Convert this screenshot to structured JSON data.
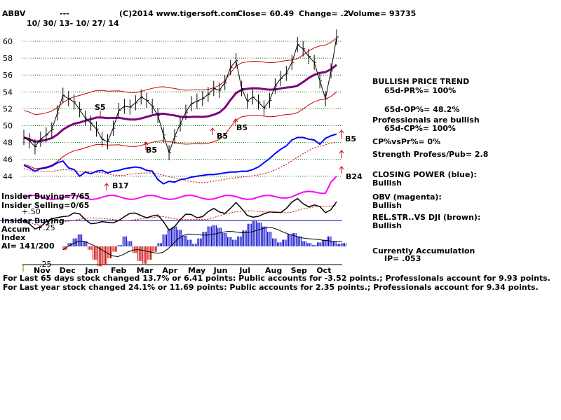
{
  "header": {
    "ticker": "ABBV",
    "dashes": "---",
    "copyright": "(C)2014 www.tigersoft.com",
    "close": "Close=  60.49",
    "change": "Change= .2",
    "volume": "Volume= 93735",
    "date_range": "10/ 30/ 13-  10/ 27/ 14"
  },
  "y_ticks": [
    "60",
    "58",
    "56",
    "54",
    "52",
    "50",
    "48",
    "46",
    "44"
  ],
  "months": [
    "Nov",
    "Dec",
    "Jan",
    "Feb",
    "Mar",
    "Apr",
    "May",
    "Jun",
    "Jul",
    "Aug",
    "Sep",
    "Oct"
  ],
  "signals": {
    "s5": "S5",
    "b17": "B17",
    "b5_feb": "B5",
    "b5_jun": "B5",
    "b5_jul": "B5",
    "b5_oct": "B5",
    "b24": "B24"
  },
  "left_labels": {
    "insider_buying": "Insider Buying=7/65",
    "insider_selling": "Insider Selling=0/65",
    "plus50": "+.50",
    "insider_buying2": "Insider Buying",
    "accum": "Accum",
    "plus25": "+.25",
    "index": "Index",
    "ai": "AI= 141/200",
    "minus25": "-.25"
  },
  "right_panel": {
    "trend_title": "BULLISH PRICE TREND",
    "pr": "65d-PR%= 100%",
    "op": "65d-OP%= 48.2%",
    "pros": "Professionals are bullish",
    "cp": "65d-CP%= 100%",
    "cpvspr": "CP%vsPr%=  0%",
    "strength": "Strength Profess/Pub= 2.8",
    "closing_power": "CLOSING POWER (blue):",
    "closing_power_state": "Bullish",
    "obv": "OBV (magenta):",
    "obv_state": "Bullish",
    "relstr": "REL.STR..VS DJI (brown):",
    "relstr_state": "Bullish",
    "accum": "Currently Accumulation",
    "ip": "IP=  .053"
  },
  "footer": {
    "line1": "For Last 65 days stock changed  13.7% or  6.41 points:  Public accounts for -3.52 points.;  Professionals account for  9.93 points.",
    "line2": "For Last year stock changed  24.1% or  11.69 points:  Public accounts for  2.35 points.;  Professionals account for  9.34 points."
  },
  "colors": {
    "price": "#000000",
    "bands": "#cc0000",
    "ma": "#800080",
    "closing_power": "#0000ff",
    "obv": "#ff00ff",
    "relstr": "#000000",
    "accum_pos": "#0000cc",
    "accum_neg": "#cc0000",
    "grid": "#008000",
    "insider_line": "#0000aa"
  },
  "chart_data": {
    "type": "line",
    "title": "ABBV",
    "ylim": [
      44,
      61
    ],
    "months": [
      "Nov",
      "Dec",
      "Jan",
      "Feb",
      "Mar",
      "Apr",
      "May",
      "Jun",
      "Jul",
      "Aug",
      "Sep",
      "Oct"
    ],
    "price": [
      48.6,
      48.2,
      47.5,
      48.4,
      48.9,
      49.5,
      51.5,
      53.6,
      53.2,
      52.8,
      51.9,
      50.9,
      50.3,
      49.6,
      48.4,
      48.1,
      49.7,
      51.8,
      52.3,
      52.2,
      52.7,
      53.4,
      53.0,
      52.3,
      51.2,
      48.9,
      46.8,
      48.7,
      50.2,
      51.6,
      52.6,
      52.9,
      53.2,
      53.7,
      54.4,
      54.2,
      55.1,
      56.9,
      57.7,
      54.4,
      52.9,
      53.4,
      52.8,
      52.1,
      53.0,
      54.7,
      55.6,
      56.2,
      57.5,
      59.6,
      59.1,
      58.2,
      57.5,
      55.3,
      53.2,
      56.5,
      60.5
    ],
    "closing_power": [
      45.3,
      45.0,
      44.6,
      44.9,
      45.0,
      45.2,
      45.6,
      45.8,
      45.0,
      44.8,
      44.0,
      44.5,
      44.3,
      44.6,
      44.7,
      44.4,
      44.6,
      44.7,
      44.9,
      45.0,
      45.1,
      45.0,
      44.7,
      44.6,
      43.6,
      43.1,
      43.4,
      43.3,
      43.6,
      43.7,
      43.9,
      44.0,
      44.1,
      44.2,
      44.2,
      44.3,
      44.4,
      44.5,
      44.5,
      44.6,
      44.6,
      44.8,
      45.1,
      45.6,
      46.1,
      46.7,
      47.2,
      47.6,
      48.3,
      48.6,
      48.6,
      48.4,
      48.3,
      47.8,
      48.5,
      48.8,
      49.0
    ],
    "obv_trend": "up",
    "signals": [
      {
        "label": "S5",
        "month": "Jan"
      },
      {
        "label": "B17",
        "month": "Feb"
      },
      {
        "label": "B5",
        "month": "Mar"
      },
      {
        "label": "B5",
        "month": "Jun"
      },
      {
        "label": "B5",
        "month": "Jul"
      },
      {
        "label": "B5",
        "month": "Oct"
      },
      {
        "label": "B24",
        "month": "Oct"
      }
    ],
    "accumulation": [
      -0.05,
      0.05,
      0.12,
      0.18,
      0.08,
      -0.05,
      -0.2,
      -0.3,
      -0.28,
      -0.18,
      -0.08,
      0.02,
      0.15,
      0.08,
      -0.1,
      -0.22,
      -0.26,
      -0.2,
      -0.08,
      0.05,
      0.18,
      0.26,
      0.3,
      0.25,
      0.16,
      0.1,
      0.04,
      0.12,
      0.22,
      0.3,
      0.32,
      0.28,
      0.2,
      0.14,
      0.1,
      0.15,
      0.24,
      0.34,
      0.38,
      0.36,
      0.3,
      0.22,
      0.12,
      0.06,
      0.1,
      0.18,
      0.2,
      0.15,
      0.08,
      0.05,
      0.02,
      0.06,
      0.1,
      0.15,
      0.08,
      0.04,
      0.05
    ]
  }
}
